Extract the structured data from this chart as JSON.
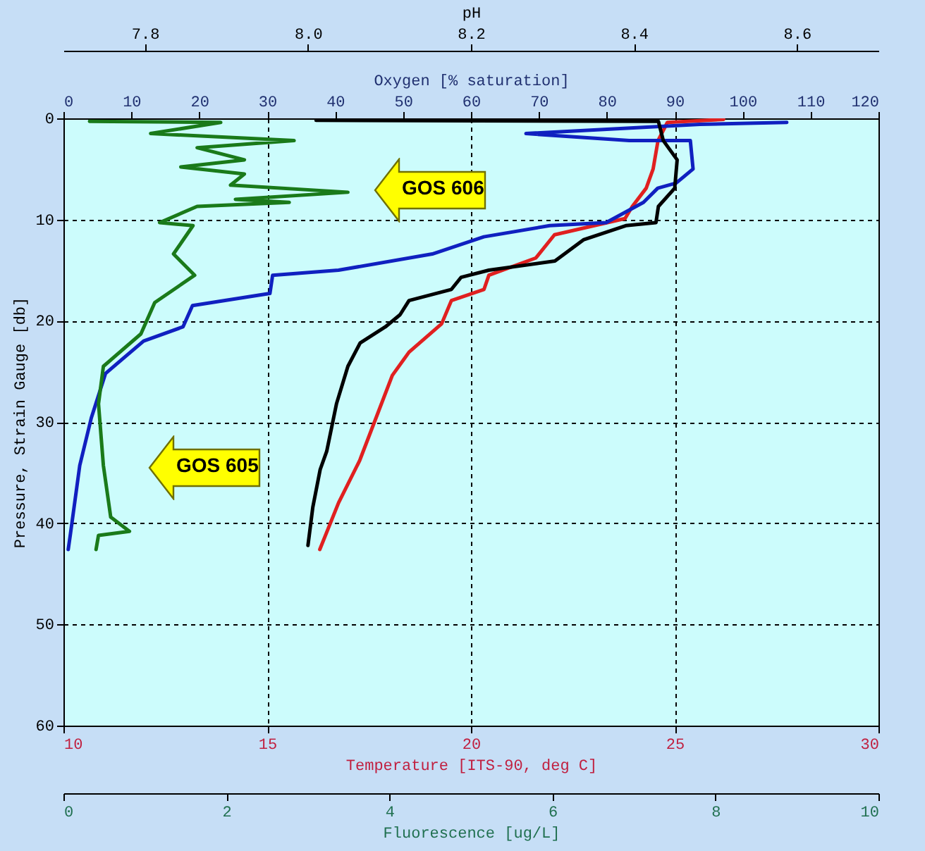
{
  "chart_data": [
    {
      "type": "line",
      "ylabel": "Pressure, Strain Gauge [db]",
      "ylim": [
        60,
        0
      ],
      "yticks": [
        0,
        10,
        20,
        30,
        40,
        50,
        60
      ],
      "grid": true,
      "xlabel": "Temperature [ITS-90, deg C]",
      "xlim": [
        10,
        30
      ],
      "xticks": [
        10,
        15,
        20,
        25,
        30
      ],
      "x2label": "Oxygen [% saturation]",
      "x2lim": [
        0,
        120
      ],
      "x2ticks": [
        0,
        10,
        20,
        30,
        40,
        50,
        60,
        70,
        80,
        90,
        100,
        110,
        120
      ],
      "annotations": [
        "GOS 606",
        "GOS 605"
      ],
      "series": [
        {
          "color": "#e02020",
          "x": [
            26.2,
            24.82,
            24.59,
            24.47,
            24.3,
            23.96,
            23.78,
            22.05,
            21.59,
            20.44,
            20.32,
            19.52,
            19.28,
            18.48,
            18.07,
            17.67,
            17.27,
            16.75,
            16.29
          ],
          "values": [
            0.1,
            0.4,
            2.2,
            5.0,
            6.9,
            8.7,
            9.9,
            11.5,
            13.8,
            15.5,
            16.9,
            18.0,
            20.3,
            23.1,
            25.4,
            29.6,
            33.8,
            38.0,
            42.6
          ]
        },
        {
          "axis": "x2",
          "color": "#1020c0",
          "x": [
            106.5,
            93.7,
            68.1,
            83.3,
            92.3,
            92.7,
            90.2,
            87.5,
            85.4,
            79.9,
            71.6,
            61.9,
            54.3,
            40.5,
            30.8,
            30.4,
            19.0,
            17.6,
            11.8,
            6.2,
            4.1,
            2.4,
            1.0,
            0.7
          ],
          "values": [
            0.4,
            0.6,
            1.5,
            2.2,
            2.2,
            5.0,
            6.4,
            6.9,
            8.3,
            10.3,
            10.6,
            11.7,
            13.4,
            15.0,
            15.5,
            17.3,
            18.5,
            20.6,
            22.0,
            25.2,
            29.6,
            34.3,
            41.2,
            42.6
          ]
        }
      ]
    },
    {
      "type": "line",
      "ylim": [
        60,
        0
      ],
      "yticks": [
        0,
        10,
        20,
        30,
        40,
        50,
        60
      ],
      "tick_labels": "x",
      "xlabel": "Fluorescence [ug/L]",
      "xlim": [
        0,
        10
      ],
      "xticks": [
        0,
        2,
        4,
        6,
        8,
        10
      ],
      "x2label": "pH",
      "x2lim": [
        7.7,
        8.7
      ],
      "x2ticks": [
        7.8,
        {
          "value": 8,
          "label": "8.0"
        },
        8.2,
        8.4,
        8.6
      ],
      "series": [
        {
          "color": "#1a7a1a",
          "x": [
            0.32,
            1.93,
            1.07,
            2.83,
            1.64,
            2.22,
            1.44,
            2.22,
            2.05,
            3.49,
            2.11,
            2.77,
            1.64,
            1.18,
            1.59,
            1.35,
            1.61,
            1.12,
            0.95,
            0.49,
            0.43,
            0.49,
            0.58,
            0.81,
            0.43,
            0.4
          ],
          "values": [
            0.3,
            0.4,
            1.5,
            2.2,
            2.9,
            4.1,
            4.8,
            5.5,
            6.6,
            7.3,
            8.0,
            8.3,
            8.7,
            10.3,
            10.6,
            13.4,
            15.5,
            18.2,
            21.3,
            24.5,
            28.2,
            34.3,
            39.4,
            40.8,
            41.2,
            42.6
          ]
        },
        {
          "axis": "x2",
          "color": "#000000",
          "x": [
            8.01,
            8.43,
            8.436,
            8.453,
            8.45,
            8.43,
            8.427,
            8.39,
            8.338,
            8.303,
            8.222,
            8.188,
            8.176,
            8.124,
            8.113,
            8.095,
            8.064,
            8.049,
            8.035,
            8.023,
            8.015,
            8.006,
            8.0
          ],
          "values": [
            0.2,
            0.3,
            2.2,
            4.1,
            6.9,
            8.7,
            10.3,
            10.6,
            12.0,
            14.1,
            15.0,
            15.7,
            16.9,
            18.0,
            19.4,
            20.6,
            22.2,
            24.5,
            28.2,
            32.9,
            34.7,
            38.4,
            42.2
          ]
        }
      ]
    }
  ]
}
